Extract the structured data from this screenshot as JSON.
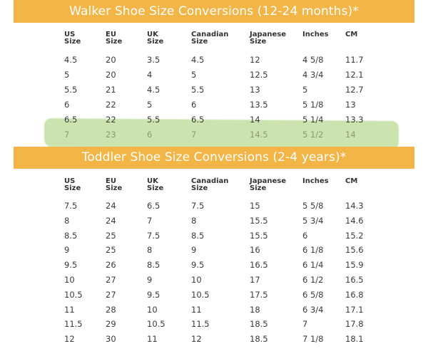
{
  "walker": {
    "title": "Walker Shoe Size Conversions (12-24 months)*",
    "headers": [
      [
        "US",
        "Size"
      ],
      [
        "EU",
        "Size"
      ],
      [
        "UK",
        "Size"
      ],
      [
        "Canadian",
        "Size"
      ],
      [
        "Japanese",
        "Size"
      ],
      [
        "Inches",
        ""
      ],
      [
        "CM",
        ""
      ]
    ],
    "rows": [
      [
        "4.5",
        "20",
        "3.5",
        "4.5",
        "12",
        "4 5/8",
        "11.7"
      ],
      [
        "5",
        "20",
        "4",
        "5",
        "12.5",
        "4 3/4",
        "12.1"
      ],
      [
        "5.5",
        "21",
        "4.5",
        "5.5",
        "13",
        "5",
        "12.7"
      ],
      [
        "6",
        "22",
        "5",
        "6",
        "13.5",
        "5 1/8",
        "13"
      ],
      [
        "6.5",
        "22",
        "5.5",
        "6.5",
        "14",
        "5 1/4",
        "13.3"
      ],
      [
        "7",
        "23",
        "6",
        "7",
        "14.5",
        "5 1/2",
        "14"
      ]
    ],
    "highlight_color": "#a0ce6e"
  },
  "toddler": {
    "title": "Toddler Shoe Size Conversions (2-4 years)*",
    "headers": [
      [
        "US",
        "Size"
      ],
      [
        "EU",
        "Size"
      ],
      [
        "UK",
        "Size"
      ],
      [
        "Canadian",
        "Size"
      ],
      [
        "Japanese",
        "Size"
      ],
      [
        "Inches",
        ""
      ],
      [
        "CM",
        ""
      ]
    ],
    "rows": [
      [
        "7.5",
        "24",
        "6.5",
        "7.5",
        "15",
        "5 5/8",
        "14.3"
      ],
      [
        "8",
        "24",
        "7",
        "8",
        "15.5",
        "5 3/4",
        "14.6"
      ],
      [
        "8.5",
        "25",
        "7.5",
        "8.5",
        "15.5",
        "6",
        "15.2"
      ],
      [
        "9",
        "25",
        "8",
        "9",
        "16",
        "6 1/8",
        "15.6"
      ],
      [
        "9.5",
        "26",
        "8.5",
        "9.5",
        "16.5",
        "6 1/4",
        "15.9"
      ],
      [
        "10",
        "27",
        "9",
        "10",
        "17",
        "6 1/2",
        "16.5"
      ],
      [
        "10.5",
        "27",
        "9.5",
        "10.5",
        "17.5",
        "6 5/8",
        "16.8"
      ],
      [
        "11",
        "28",
        "10",
        "11",
        "18",
        "6 3/4",
        "17.1"
      ],
      [
        "11.5",
        "29",
        "10.5",
        "11.5",
        "18.5",
        "7",
        "17.8"
      ],
      [
        "12",
        "30",
        "11",
        "12",
        "18.5",
        "7 1/8",
        "18.1"
      ]
    ]
  },
  "colors": {
    "banner": "#f3b546",
    "banner_text": "#ffffff",
    "text": "#3a3a3a"
  }
}
